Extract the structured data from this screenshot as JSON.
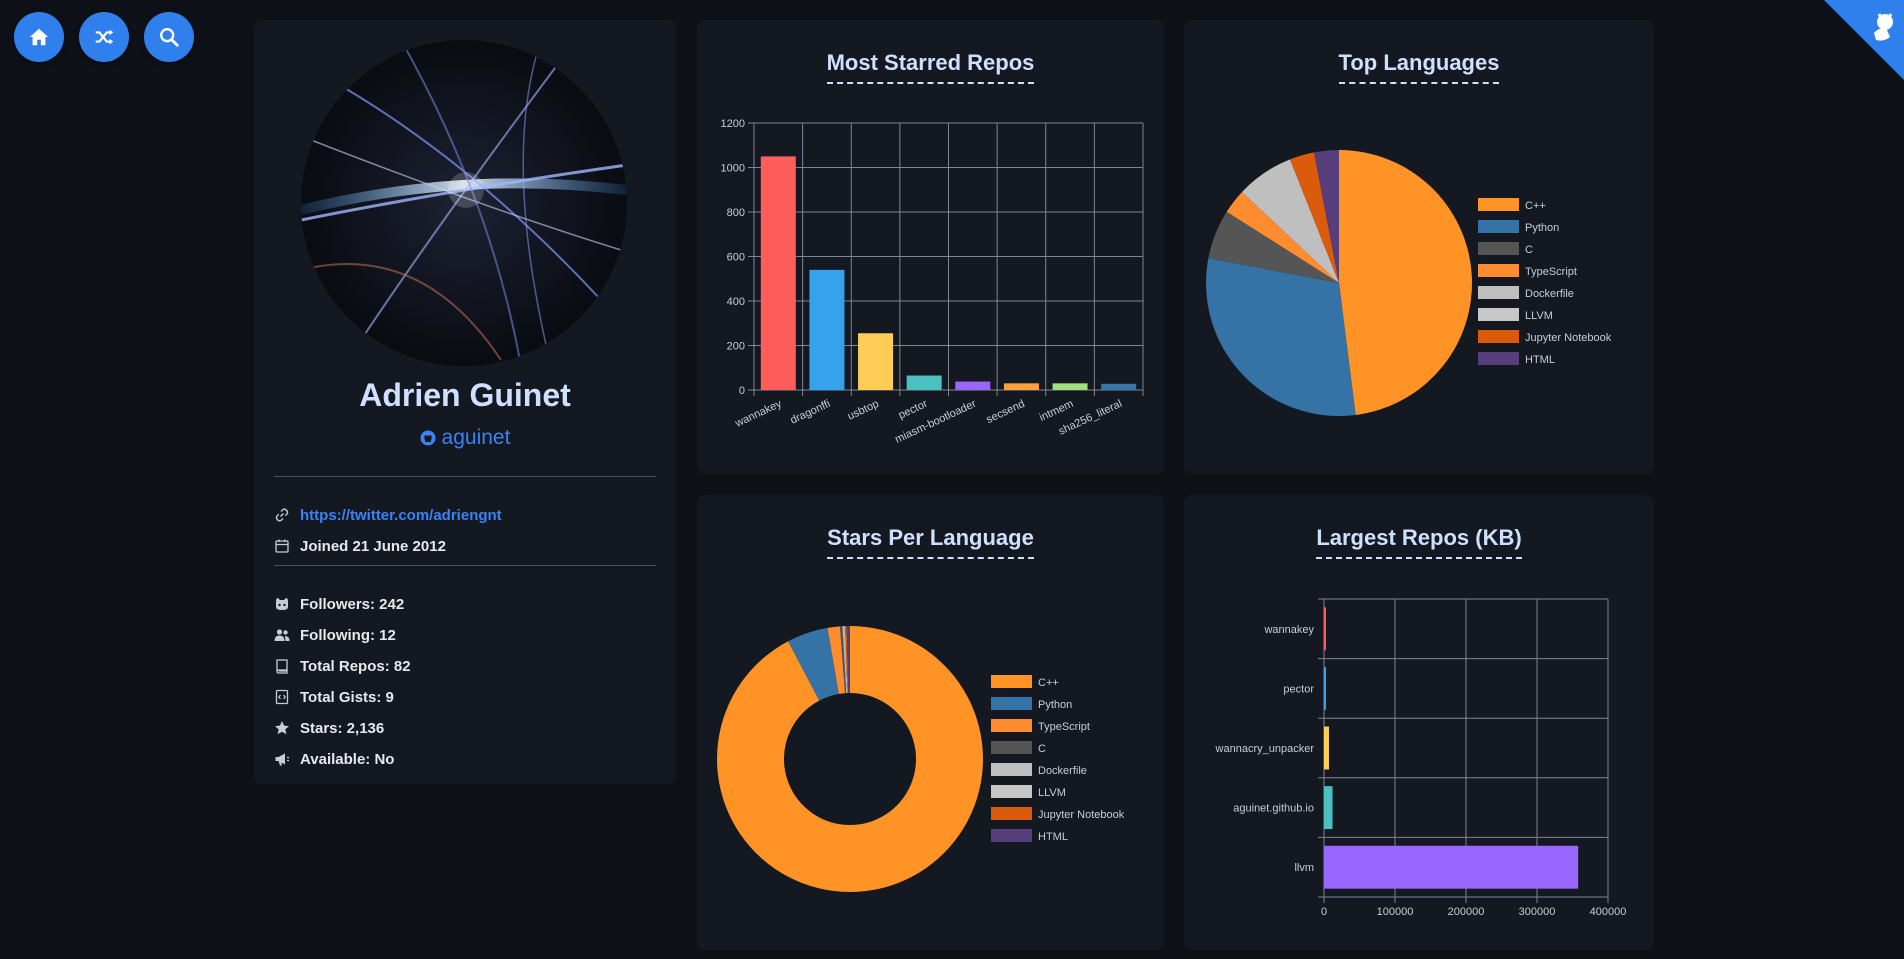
{
  "nav": {
    "home_icon": "home-icon",
    "random_icon": "shuffle-icon",
    "search_icon": "search-icon",
    "color": "#2f80ed"
  },
  "profile": {
    "name": "Adrien Guinet",
    "login": "aguinet",
    "link": "https://twitter.com/adriengnt",
    "joined": "Joined 21 June 2012",
    "followers": "Followers: 242",
    "following": "Following: 12",
    "total_repos": "Total Repos: 82",
    "total_gists": "Total Gists: 9",
    "stars": "Stars: 2,136",
    "available": "Available: No"
  },
  "colors": {
    "accent": "#2f80ed",
    "link": "#3b82f6",
    "card": "#141820",
    "background": "#0e1117"
  },
  "chart_data": [
    {
      "id": "most-starred",
      "type": "bar",
      "title": "Most Starred Repos",
      "categories": [
        "wannakey",
        "dragonffi",
        "usbtop",
        "pector",
        "miasm-bootloader",
        "secsend",
        "intmem",
        "sha256_literal"
      ],
      "values": [
        1050,
        540,
        255,
        65,
        38,
        30,
        30,
        28
      ],
      "colors": [
        "#ff5c5c",
        "#36a2eb",
        "#ffcd56",
        "#4bc0c0",
        "#9966ff",
        "#ff9f40",
        "#a0e07a",
        "#3776ab"
      ],
      "ylim": [
        0,
        1200
      ],
      "yticks": [
        0,
        200,
        400,
        600,
        800,
        1000,
        1200
      ],
      "grid": true
    },
    {
      "id": "top-languages",
      "type": "pie",
      "title": "Top Languages",
      "labels": [
        "C++",
        "Python",
        "C",
        "TypeScript",
        "Dockerfile",
        "LLVM",
        "Jupyter Notebook",
        "HTML"
      ],
      "values": [
        48,
        30,
        6,
        3,
        7,
        0,
        3,
        3
      ],
      "colors": [
        "#ff9326",
        "#3572a5",
        "#555555",
        "#ff8c2e",
        "#bfbfbf",
        "#c7c7c7",
        "#da5b0b",
        "#563d7c"
      ],
      "legend": "right"
    },
    {
      "id": "stars-per-language",
      "type": "pie",
      "subtype": "doughnut",
      "title": "Stars Per Language",
      "labels": [
        "C++",
        "Python",
        "TypeScript",
        "C",
        "Dockerfile",
        "LLVM",
        "Jupyter Notebook",
        "HTML"
      ],
      "values": [
        92.3,
        5.0,
        1.5,
        0.3,
        0.2,
        0.1,
        0.2,
        0.4
      ],
      "colors": [
        "#ff9326",
        "#3572a5",
        "#ff8c2e",
        "#555555",
        "#bfbfbf",
        "#c7c7c7",
        "#da5b0b",
        "#563d7c"
      ],
      "legend": "right"
    },
    {
      "id": "largest-repos",
      "type": "bar",
      "orientation": "horizontal",
      "title": "Largest Repos (KB)",
      "categories": [
        "wannakey",
        "pector",
        "wannacry_unpacker",
        "aguinet.github.io",
        "llvm"
      ],
      "values": [
        1500,
        2000,
        7000,
        12000,
        358000
      ],
      "colors": [
        "#ff5c5c",
        "#36a2eb",
        "#ffcd56",
        "#4bc0c0",
        "#9966ff"
      ],
      "xlim": [
        0,
        400000
      ],
      "xticks": [
        0,
        100000,
        200000,
        300000,
        400000
      ],
      "grid": true
    }
  ]
}
